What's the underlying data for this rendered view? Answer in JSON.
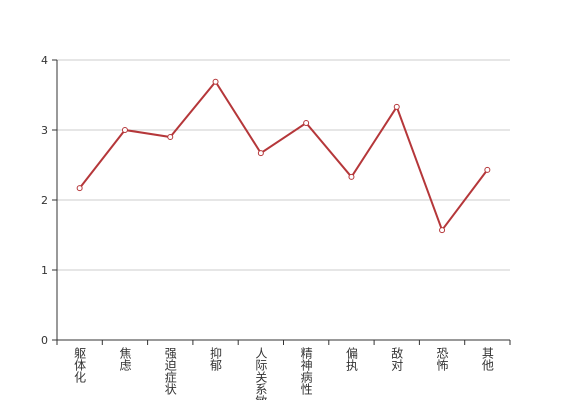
{
  "chart_data": {
    "type": "line",
    "categories": [
      "躯体化",
      "焦虑",
      "强迫症状",
      "抑郁",
      "人际关系敏感",
      "精神病性",
      "偏执",
      "敌对",
      "恐怖",
      "其他"
    ],
    "series": [
      {
        "name": "",
        "color": "#b5373a",
        "values": [
          2.17,
          3.0,
          2.9,
          3.69,
          2.67,
          3.1,
          2.33,
          3.33,
          1.57,
          2.43
        ]
      }
    ],
    "ylim": [
      0,
      4
    ],
    "yticks": [
      0,
      1,
      2,
      3,
      4
    ],
    "grid": true
  }
}
